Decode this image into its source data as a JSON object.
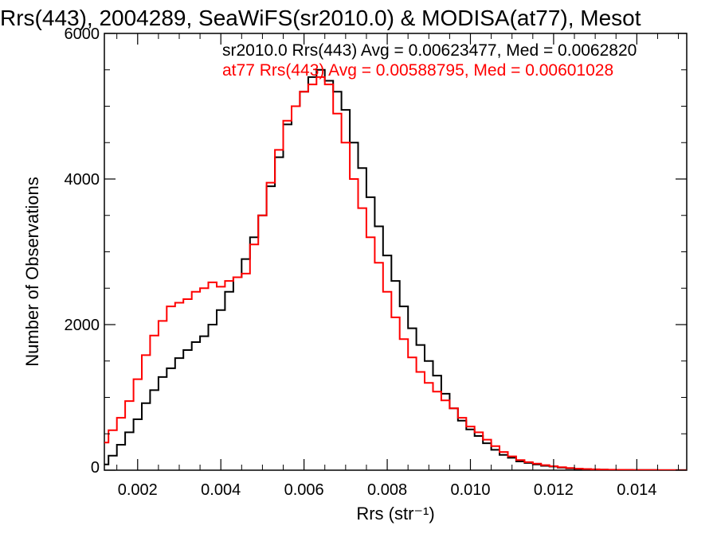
{
  "chart_data": {
    "type": "line",
    "title": "Rrs(443), 2004289, SeaWiFS(sr2010.0) & MODISA(at77), Mesot",
    "xlabel": "Rrs (str⁻¹)",
    "ylabel": "Number of Observations",
    "xlim": [
      0.0012,
      0.0152
    ],
    "ylim": [
      0,
      6000
    ],
    "xticks": [
      0.002,
      0.004,
      0.006,
      0.008,
      0.01,
      0.012,
      0.014
    ],
    "xtick_labels": [
      "0.002",
      "0.004",
      "0.006",
      "0.008",
      "0.010",
      "0.012",
      "0.014"
    ],
    "yticks": [
      0,
      2000,
      4000,
      6000
    ],
    "ytick_labels": [
      "0",
      "2000",
      "4000",
      "6000"
    ],
    "grid": false,
    "legend_position": "top-right",
    "annotations": [
      {
        "text": "sr2010.0 Rrs(443) Avg = 0.00623477, Med = 0.0062820",
        "color": "#000000"
      },
      {
        "text": "at77 Rrs(443) Avg = 0.00588795, Med = 0.00601028",
        "color": "#ff0000"
      }
    ],
    "series": [
      {
        "color": "#000000",
        "x": [
          0.0012,
          0.0014,
          0.0016,
          0.0018,
          0.002,
          0.0022,
          0.0024,
          0.0026,
          0.0028,
          0.003,
          0.0032,
          0.0034,
          0.0036,
          0.0038,
          0.004,
          0.0042,
          0.0044,
          0.0046,
          0.0048,
          0.005,
          0.0052,
          0.0054,
          0.0056,
          0.0058,
          0.006,
          0.0062,
          0.0064,
          0.0066,
          0.0068,
          0.007,
          0.0072,
          0.0074,
          0.0076,
          0.0078,
          0.008,
          0.0082,
          0.0084,
          0.0086,
          0.0088,
          0.009,
          0.0092,
          0.0094,
          0.0096,
          0.0098,
          0.01,
          0.0102,
          0.0104,
          0.0106,
          0.0108,
          0.011,
          0.0112,
          0.0114,
          0.0116,
          0.0118,
          0.012,
          0.0122,
          0.0124,
          0.0126,
          0.0128,
          0.013,
          0.0132,
          0.0134,
          0.0136,
          0.0138,
          0.014,
          0.0142,
          0.0144,
          0.0146,
          0.0148,
          0.015,
          0.0152
        ],
        "y": [
          80,
          200,
          350,
          520,
          700,
          920,
          1100,
          1280,
          1400,
          1540,
          1650,
          1760,
          1840,
          2000,
          2200,
          2450,
          2650,
          2900,
          3200,
          3500,
          3900,
          4300,
          4750,
          5000,
          5200,
          5400,
          5500,
          5350,
          5200,
          4950,
          4500,
          4150,
          3750,
          3350,
          2950,
          2600,
          2250,
          1950,
          1720,
          1500,
          1300,
          1050,
          850,
          680,
          560,
          470,
          370,
          280,
          210,
          170,
          120,
          100,
          80,
          60,
          50,
          35,
          25,
          18,
          14,
          10,
          8,
          6,
          5,
          4,
          3,
          2,
          2,
          1,
          1,
          1,
          1
        ]
      },
      {
        "color": "#ff0000",
        "x": [
          0.0012,
          0.0014,
          0.0016,
          0.0018,
          0.002,
          0.0022,
          0.0024,
          0.0026,
          0.0028,
          0.003,
          0.0032,
          0.0034,
          0.0036,
          0.0038,
          0.004,
          0.0042,
          0.0044,
          0.0046,
          0.0048,
          0.005,
          0.0052,
          0.0054,
          0.0056,
          0.0058,
          0.006,
          0.0062,
          0.0064,
          0.0066,
          0.0068,
          0.007,
          0.0072,
          0.0074,
          0.0076,
          0.0078,
          0.008,
          0.0082,
          0.0084,
          0.0086,
          0.0088,
          0.009,
          0.0092,
          0.0094,
          0.0096,
          0.0098,
          0.01,
          0.0102,
          0.0104,
          0.0106,
          0.0108,
          0.011,
          0.0112,
          0.0114,
          0.0116,
          0.0118,
          0.012,
          0.0122,
          0.0124,
          0.0126,
          0.0128,
          0.013,
          0.0132,
          0.0134,
          0.0136,
          0.0138,
          0.014,
          0.0142,
          0.0144,
          0.0146,
          0.0148,
          0.015,
          0.0152
        ],
        "y": [
          380,
          550,
          720,
          950,
          1250,
          1580,
          1850,
          2050,
          2250,
          2300,
          2350,
          2450,
          2500,
          2580,
          2520,
          2600,
          2650,
          2700,
          3100,
          3500,
          3950,
          4400,
          4800,
          5000,
          5200,
          5300,
          5400,
          5300,
          4900,
          4500,
          4000,
          3600,
          3200,
          2850,
          2450,
          2100,
          1800,
          1550,
          1350,
          1200,
          1080,
          960,
          850,
          720,
          600,
          520,
          420,
          330,
          250,
          190,
          140,
          110,
          90,
          70,
          55,
          40,
          30,
          22,
          16,
          12,
          9,
          7,
          5,
          4,
          3,
          2,
          2,
          1,
          1,
          1,
          1
        ]
      }
    ]
  }
}
